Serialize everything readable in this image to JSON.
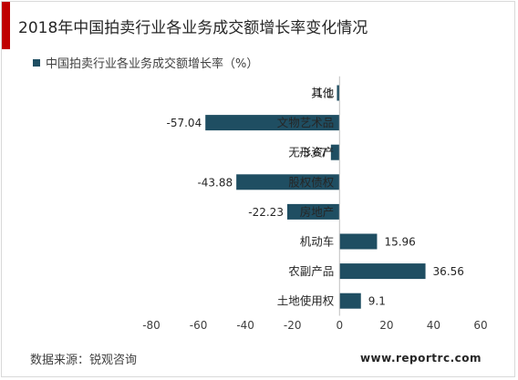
{
  "header": {
    "title": "2018年中国拍卖行业各业务成交额增长率变化情况",
    "accent_color": "#c00000"
  },
  "legend": {
    "series_name": "中国拍卖行业各业务成交额增长率（%）",
    "swatch_color": "#1f4e62"
  },
  "footer": {
    "source": "数据来源：锐观咨询",
    "site": "www.reportrc.com"
  },
  "chart_data": {
    "type": "bar",
    "orientation": "horizontal",
    "title": "2018年中国拍卖行业各业务成交额增长率变化情况",
    "xlabel": "",
    "ylabel": "",
    "xlim": [
      -80,
      60
    ],
    "xticks": [
      -80,
      -60,
      -40,
      -20,
      0,
      20,
      40,
      60
    ],
    "grid": false,
    "legend_position": "top-left",
    "bar_color": "#1f4e62",
    "categories": [
      "其他",
      "文物艺术品",
      "无形资产",
      "股权债权",
      "房地产",
      "机动车",
      "农副产品",
      "土地使用权"
    ],
    "series": [
      {
        "name": "中国拍卖行业各业务成交额增长率（%）",
        "values": [
          -1.1,
          -57.04,
          -3.67,
          -43.88,
          -22.23,
          15.96,
          36.56,
          9.1
        ],
        "labels": [
          "-1.1",
          "-57.04",
          "-3.67",
          "-43.88",
          "-22.23",
          "15.96",
          "36.56",
          "9.1"
        ]
      }
    ]
  }
}
